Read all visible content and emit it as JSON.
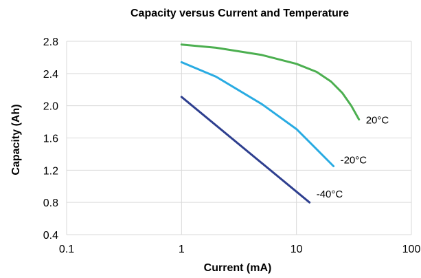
{
  "chart_data": {
    "type": "line",
    "title": "Capacity versus Current and Temperature",
    "xlabel": "Current (mA)",
    "ylabel": "Capacity (Ah)",
    "x_scale": "log",
    "xlim": [
      0.1,
      100
    ],
    "ylim": [
      0.4,
      2.8
    ],
    "x_ticks": [
      "0.1",
      "1",
      "10",
      "100"
    ],
    "y_ticks": [
      "0.4",
      "0.8",
      "1.2",
      "1.6",
      "2.0",
      "2.4",
      "2.8"
    ],
    "grid": true,
    "series": [
      {
        "name": "20°C",
        "color": "#4caf50",
        "points": [
          [
            1,
            2.76
          ],
          [
            2,
            2.72
          ],
          [
            5,
            2.63
          ],
          [
            10,
            2.52
          ],
          [
            15,
            2.42
          ],
          [
            20,
            2.3
          ],
          [
            25,
            2.16
          ],
          [
            30,
            2.0
          ],
          [
            35,
            1.83
          ]
        ]
      },
      {
        "name": "-20°C",
        "color": "#29abe2",
        "points": [
          [
            1,
            2.54
          ],
          [
            2,
            2.36
          ],
          [
            5,
            2.02
          ],
          [
            10,
            1.71
          ],
          [
            15,
            1.46
          ],
          [
            21,
            1.25
          ]
        ]
      },
      {
        "name": "-40°C",
        "color": "#2e3f8f",
        "points": [
          [
            1,
            2.11
          ],
          [
            13,
            0.8
          ]
        ]
      }
    ]
  }
}
